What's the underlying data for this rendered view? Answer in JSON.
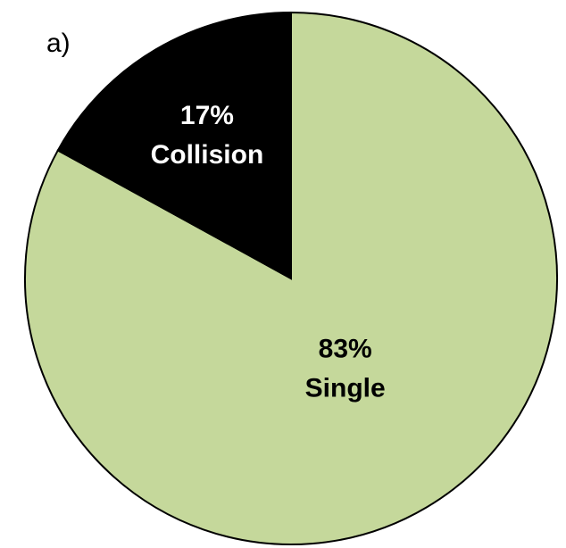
{
  "chart_data": {
    "type": "pie",
    "title": "a)",
    "categories": [
      "Single",
      "Collision"
    ],
    "values": [
      83,
      17
    ],
    "value_labels": [
      "83%",
      "17%"
    ],
    "colors": [
      "#c5d89b",
      "#000000"
    ],
    "label_colors": [
      "#000000",
      "#ffffff"
    ],
    "start_angle": 0,
    "direction": "clockwise"
  }
}
